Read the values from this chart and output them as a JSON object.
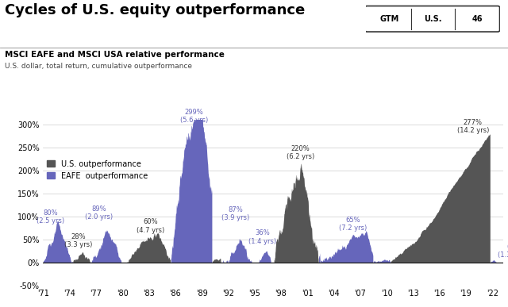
{
  "title": "Cycles of U.S. equity outperformance",
  "subtitle": "MSCI EAFE and MSCI USA relative performance",
  "subtitle2": "U.S. dollar, total return, cumulative outperformance",
  "badge_gtm": "GTM",
  "badge_us": "U.S.",
  "badge_num": "46",
  "xlim": [
    1971,
    2023.2
  ],
  "ylim": [
    -50,
    310
  ],
  "yticks": [
    -50,
    0,
    50,
    100,
    150,
    200,
    250,
    300
  ],
  "ytick_labels": [
    "-50%",
    "0%",
    "50%",
    "100%",
    "150%",
    "200%",
    "250%",
    "300%"
  ],
  "xtick_years": [
    1971,
    1974,
    1977,
    1980,
    1983,
    1986,
    1989,
    1992,
    1995,
    1998,
    2001,
    2004,
    2007,
    2010,
    2013,
    2016,
    2019,
    2022
  ],
  "xtick_labels": [
    "'71",
    "'74",
    "'77",
    "'80",
    "'83",
    "'86",
    "'89",
    "'92",
    "'95",
    "'98",
    "'01",
    "'04",
    "'07",
    "'10",
    "'13",
    "'16",
    "'19",
    "'22"
  ],
  "us_color": "#555555",
  "eafe_color": "#6666bb",
  "background_color": "#ffffff",
  "legend_us": "U.S. outperformance",
  "legend_eafe": "EAFE  outperformance"
}
